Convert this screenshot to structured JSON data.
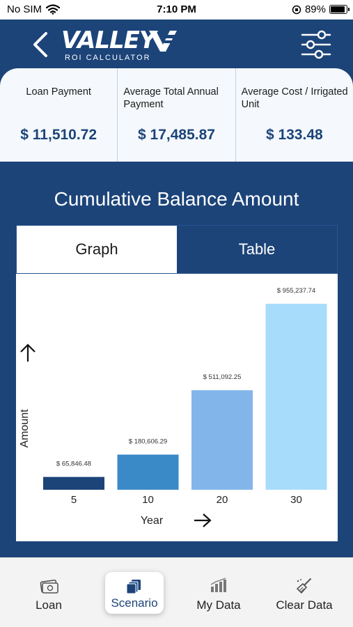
{
  "status_bar": {
    "carrier": "No SIM",
    "time": "7:10 PM",
    "battery_percent": "89%",
    "battery_level": 0.89
  },
  "header": {
    "brand": "VALLEY",
    "brand_subtitle": "ROI CALCULATOR",
    "back_icon": "chevron-left-icon",
    "settings_icon": "sliders-icon"
  },
  "summary": {
    "cards": [
      {
        "label": "Loan Payment",
        "value": "$ 11,510.72"
      },
      {
        "label": "Average Total Annual Payment",
        "value": "$ 17,485.87"
      },
      {
        "label": "Average Cost / Irrigated Unit",
        "value": "$ 133.48"
      }
    ]
  },
  "panel": {
    "title": "Cumulative Balance Amount",
    "tabs": [
      {
        "label": "Graph",
        "active": true
      },
      {
        "label": "Table",
        "active": false
      }
    ]
  },
  "chart_data": {
    "type": "bar",
    "title": "",
    "categories": [
      "5",
      "10",
      "20",
      "30"
    ],
    "values": [
      65846.48,
      180606.29,
      511092.25,
      955237.74
    ],
    "value_labels": [
      "$ 65,846.48",
      "$ 180,606.29",
      "$ 511,092.25",
      "$ 955,237.74"
    ],
    "colors": [
      "#1c4479",
      "#3b8ac8",
      "#82b6ea",
      "#a8dcfb"
    ],
    "xlabel": "Year",
    "ylabel": "Amount",
    "ylim": [
      0,
      955237.74
    ],
    "grid": false,
    "legend": "none"
  },
  "tab_bar": {
    "items": [
      {
        "label": "Loan",
        "icon": "cash-icon",
        "active": false
      },
      {
        "label": "Scenario",
        "icon": "documents-icon",
        "active": true
      },
      {
        "label": "My Data",
        "icon": "bar-chart-icon",
        "active": false
      },
      {
        "label": "Clear Data",
        "icon": "broom-icon",
        "active": false
      }
    ]
  }
}
